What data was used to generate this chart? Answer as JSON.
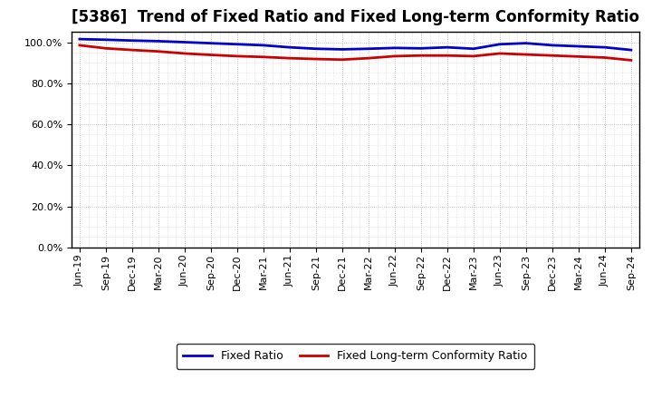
{
  "title": "[5386]  Trend of Fixed Ratio and Fixed Long-term Conformity Ratio",
  "x_labels": [
    "Jun-19",
    "Sep-19",
    "Dec-19",
    "Mar-20",
    "Jun-20",
    "Sep-20",
    "Dec-20",
    "Mar-21",
    "Jun-21",
    "Sep-21",
    "Dec-21",
    "Mar-22",
    "Jun-22",
    "Sep-22",
    "Dec-22",
    "Mar-23",
    "Jun-23",
    "Sep-23",
    "Dec-23",
    "Mar-24",
    "Jun-24",
    "Sep-24"
  ],
  "fixed_ratio": [
    101.5,
    101.2,
    100.8,
    100.5,
    100.0,
    99.5,
    99.0,
    98.5,
    97.5,
    96.8,
    96.5,
    96.8,
    97.2,
    97.0,
    97.5,
    96.8,
    99.0,
    99.5,
    98.5,
    98.0,
    97.5,
    96.2
  ],
  "fixed_lt_conformity": [
    98.5,
    97.0,
    96.2,
    95.5,
    94.5,
    93.8,
    93.2,
    92.8,
    92.2,
    91.8,
    91.5,
    92.2,
    93.2,
    93.5,
    93.5,
    93.2,
    94.5,
    94.0,
    93.5,
    93.0,
    92.5,
    91.2
  ],
  "fixed_ratio_color": "#0000cc",
  "fixed_lt_color": "#cc0000",
  "ylim": [
    0,
    105
  ],
  "yticks": [
    0,
    20,
    40,
    60,
    80,
    100
  ],
  "background_color": "#ffffff",
  "grid_color": "#999999",
  "title_fontsize": 12,
  "axis_fontsize": 8,
  "legend_labels": [
    "Fixed Ratio",
    "Fixed Long-term Conformity Ratio"
  ]
}
